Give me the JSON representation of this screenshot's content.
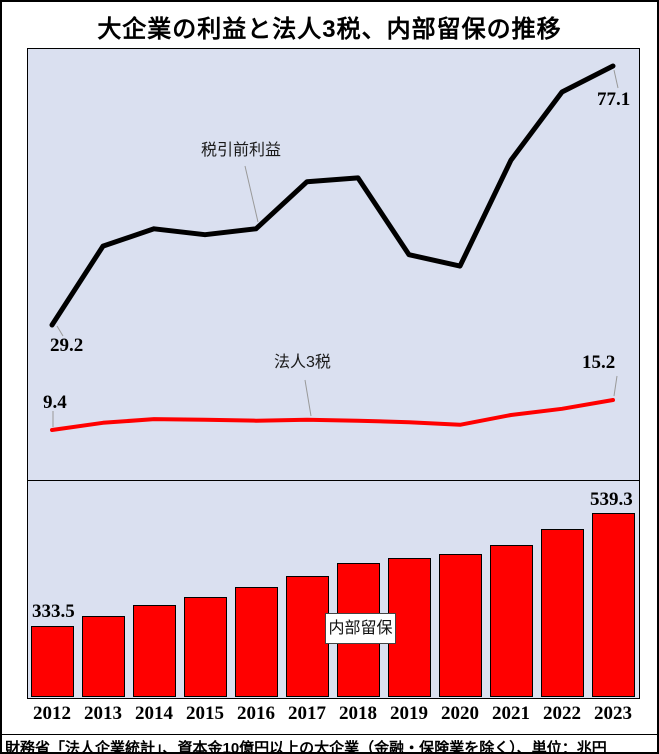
{
  "title": "大企業の利益と法人3税、内部留保の推移",
  "footer": "財務省「法人企業統計」、資本金10億円以上の大企業（金融・保険業を除く）、単位：兆円",
  "colors": {
    "panel_bg": "#dae0f0",
    "pretax_profit_line": "#000000",
    "corporate_tax_line": "#ff0000",
    "bar_fill": "#ff0000",
    "bar_border": "#000000",
    "leader_line": "#999999"
  },
  "chart_data": [
    {
      "type": "line",
      "x": [
        "2012",
        "2013",
        "2014",
        "2015",
        "2016",
        "2017",
        "2018",
        "2019",
        "2020",
        "2021",
        "2022",
        "2023"
      ],
      "grid": false,
      "legend": "inline-annotations",
      "unit": "兆円",
      "series": [
        {
          "name": "税引前利益",
          "color": "#000000",
          "values": [
            29.2,
            43.8,
            47.0,
            45.9,
            47.0,
            55.7,
            56.4,
            42.2,
            40.1,
            59.7,
            72.3,
            77.1
          ],
          "labels": {
            "start": "29.2",
            "end": "77.1"
          }
        },
        {
          "name": "法人3税",
          "color": "#ff0000",
          "values": [
            9.4,
            10.8,
            11.5,
            11.4,
            11.2,
            11.4,
            11.2,
            10.9,
            10.4,
            12.3,
            13.5,
            15.2
          ],
          "labels": {
            "start": "9.4",
            "end": "15.2"
          }
        }
      ]
    },
    {
      "type": "bar",
      "name": "内部留保",
      "categories": [
        "2012",
        "2013",
        "2014",
        "2015",
        "2016",
        "2017",
        "2018",
        "2019",
        "2020",
        "2021",
        "2022",
        "2023"
      ],
      "values": [
        333.5,
        352.0,
        371.9,
        386.3,
        404.5,
        424.6,
        448.2,
        457.3,
        464.6,
        481.2,
        510.1,
        539.3
      ],
      "unit": "兆円",
      "labels": {
        "start": "333.5",
        "end": "539.3"
      }
    }
  ]
}
